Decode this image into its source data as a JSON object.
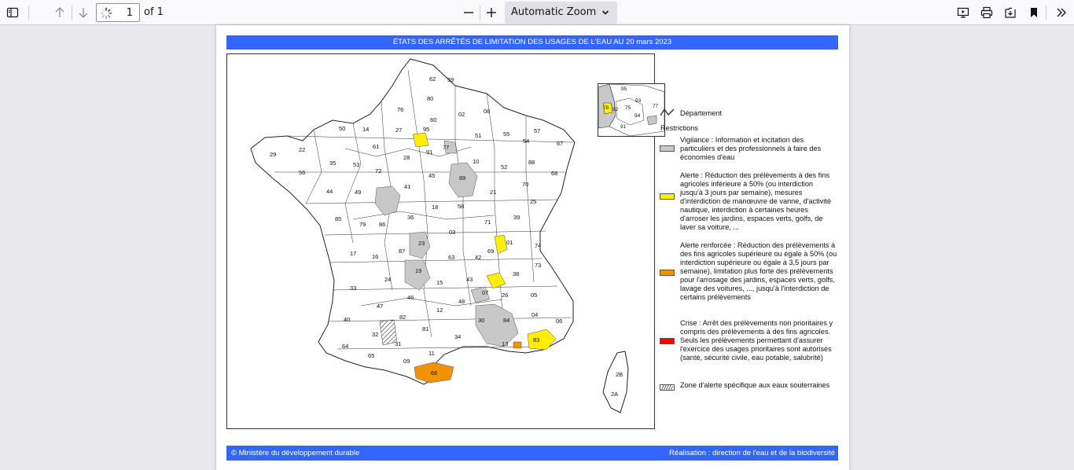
{
  "toolbar": {
    "page_number": "1",
    "page_count_label": "of 1",
    "zoom_label": "Automatic Zoom"
  },
  "document": {
    "banner_title": "ÉTATS DES ARRÊTÉS DE LIMITATION DES USAGES DE L'EAU AU 20 mars 2023",
    "footer_left": "© Ministère du développement durable",
    "footer_right": "Réalisation : direction de l'eau et de la biodiversité",
    "legend": {
      "department_label": "Département",
      "restrictions_heading": "Restrictions",
      "items": [
        {
          "color": "#c8c8c8",
          "text": "Vigilance : Information et incitation des particuliers et des professionnels à faire des économies d'eau"
        },
        {
          "color": "#ffee00",
          "text": "Alerte : Réduction des prélèvements à des fins agricoles inférieure à 50% (ou interdiction jusqu'à 3 jours par semaine), mesures d'interdiction de manœuvre de vanne, d'activité nautique, interdiction à certaines heures d'arroser les jardins, espaces verts, golfs, de laver sa voiture, ..."
        },
        {
          "color": "#f39200",
          "text": "Alerte renforcée : Réduction des prélèvements à des fins agricoles supérieure ou égale à 50% (ou interdiction supérieure ou égale à 3,5 jours par semaine), limitation plus forte des prélèvements pour l'arrosage des jardins, espaces verts, golfs, lavage des voitures, ..., jusqu'à l'interdiction de certains prélèvements"
        },
        {
          "color": "#ff0000",
          "text": "Crise : Arrêt des prélèvements non prioritaires y compris des prélèvements à des fins agricoles. Seuls les prélèvements permettant d'assurer l'exercice des usages prioritaires sont autorisés (santé, sécurité civile, eau potable, salubrité)"
        },
        {
          "color": "hatch",
          "text": "Zone d'alerte spécifique aux eaux souterraines"
        }
      ]
    },
    "map_labels": [
      "62",
      "59",
      "80",
      "76",
      "60",
      "02",
      "08",
      "50",
      "14",
      "27",
      "95",
      "51",
      "55",
      "57",
      "54",
      "67",
      "29",
      "22",
      "35",
      "53",
      "61",
      "28",
      "91",
      "77",
      "10",
      "52",
      "88",
      "68",
      "56",
      "44",
      "72",
      "45",
      "89",
      "21",
      "70",
      "25",
      "49",
      "41",
      "18",
      "58",
      "71",
      "39",
      "85",
      "79",
      "86",
      "36",
      "03",
      "01",
      "17",
      "16",
      "87",
      "23",
      "63",
      "42",
      "69",
      "74",
      "73",
      "24",
      "19",
      "15",
      "43",
      "38",
      "33",
      "47",
      "46",
      "48",
      "07",
      "26",
      "05",
      "40",
      "82",
      "12",
      "30",
      "84",
      "04",
      "06",
      "64",
      "32",
      "81",
      "34",
      "13",
      "83",
      "65",
      "31",
      "11",
      "09",
      "66",
      "2B",
      "2A",
      "93",
      "75",
      "92",
      "94",
      "78",
      "91"
    ]
  }
}
